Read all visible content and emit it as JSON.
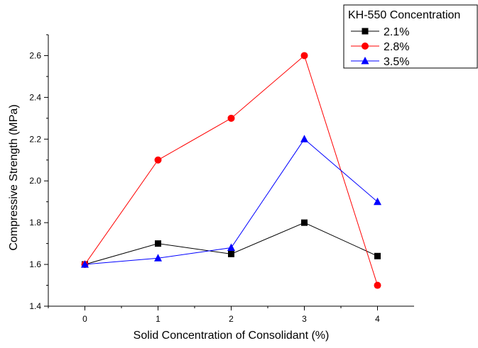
{
  "chart_data": {
    "type": "line",
    "title": "",
    "xlabel": "Solid Concentration of Consolidant (%)",
    "ylabel": "Compressive Strength (MPa)",
    "x": [
      0,
      1,
      2,
      3,
      4
    ],
    "xlim": [
      -0.5,
      4.5
    ],
    "ylim": [
      1.4,
      2.7
    ],
    "xticks": [
      "0",
      "1",
      "2",
      "3",
      "4"
    ],
    "yticks": [
      "1.4",
      "1.6",
      "1.8",
      "2.0",
      "2.2",
      "2.4",
      "2.6"
    ],
    "grid": false,
    "legend": {
      "title": "KH-550 Concentration",
      "position": "top-right"
    },
    "series": [
      {
        "name": "2.1%",
        "color": "#000000",
        "marker": "square",
        "values": [
          1.6,
          1.7,
          1.65,
          1.8,
          1.64
        ]
      },
      {
        "name": "2.8%",
        "color": "#ff0000",
        "marker": "circle",
        "values": [
          1.6,
          2.1,
          2.3,
          2.6,
          1.5
        ]
      },
      {
        "name": "3.5%",
        "color": "#0000ff",
        "marker": "triangle",
        "values": [
          1.6,
          1.63,
          1.68,
          2.2,
          1.9
        ]
      }
    ]
  }
}
